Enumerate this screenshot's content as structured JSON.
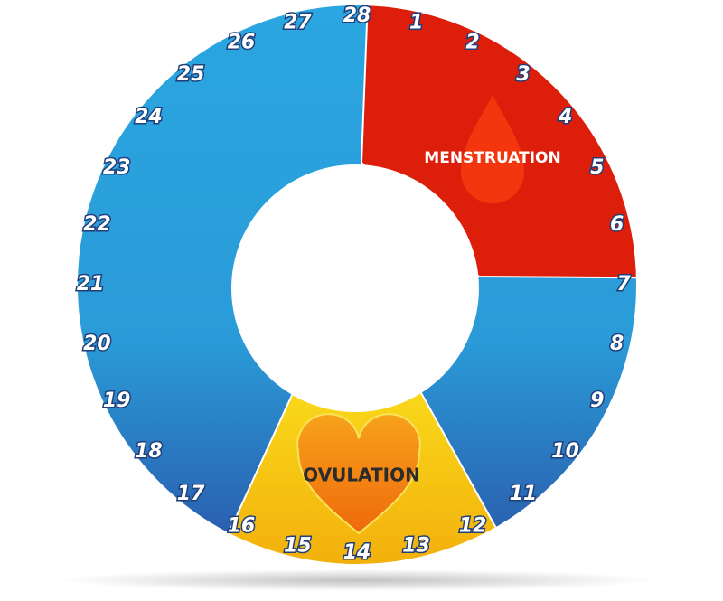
{
  "days": [
    1,
    2,
    3,
    4,
    5,
    6,
    7,
    8,
    9,
    10,
    11,
    12,
    13,
    14,
    15,
    16,
    17,
    18,
    19,
    20,
    21,
    22,
    23,
    24,
    25,
    26,
    27,
    28
  ],
  "labels": {
    "menstruation": "MENSTRUATION",
    "ovulation": "OVULATION"
  }
}
